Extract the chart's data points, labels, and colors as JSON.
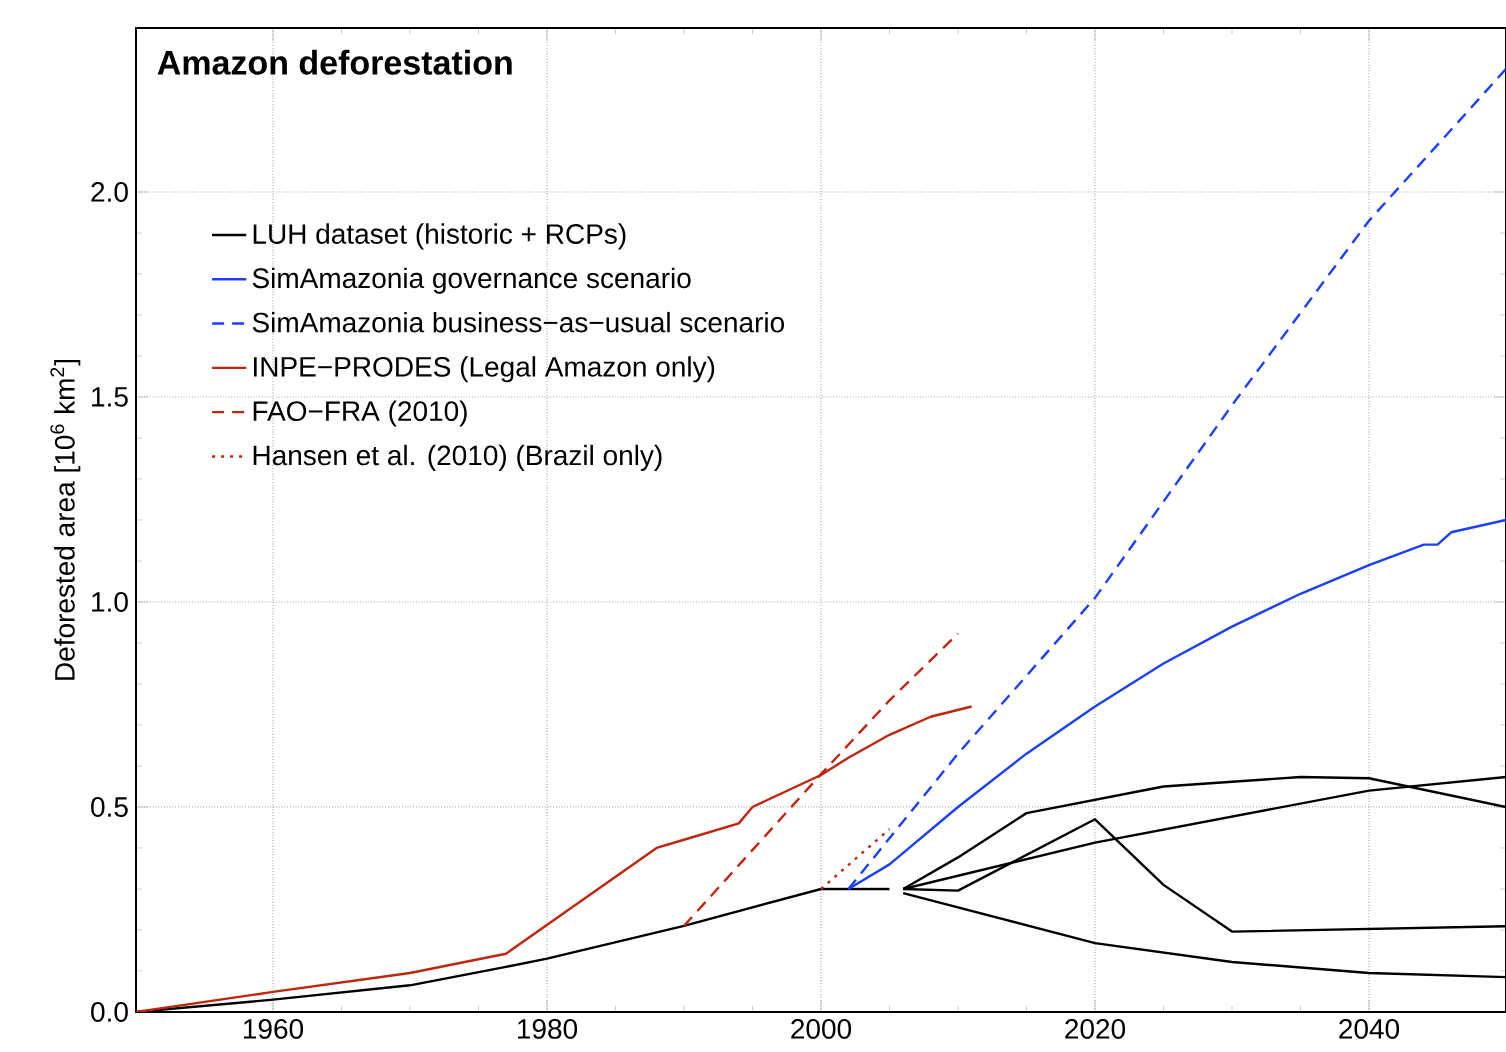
{
  "chart_data": {
    "type": "line",
    "title": "Amazon deforestation",
    "ylabel": "Deforested area  [10$^{6}$ km$^{2}$]",
    "xlim": [
      1950,
      2050
    ],
    "ylim": [
      0,
      2.4
    ],
    "xticks": [
      1960,
      1980,
      2000,
      2020,
      2040
    ],
    "yticks": [
      {
        "value": 0,
        "label": "0.0"
      },
      {
        "value": 0.5,
        "label": "0.5"
      },
      {
        "value": 1,
        "label": "1.0"
      },
      {
        "value": 1.5,
        "label": "1.5"
      },
      {
        "value": 2,
        "label": "2.0"
      }
    ],
    "grid": true,
    "legend": "top left",
    "marker": "none",
    "series": [
      {
        "name": "LUH dataset (historic + RCPs)",
        "color": "#000000",
        "line_style": "solid",
        "x": [
          1950,
          1960,
          1970,
          1977,
          1980,
          1990,
          2000,
          2005
        ],
        "values": [
          0,
          0.03,
          0.065,
          0.11,
          0.13,
          0.21,
          0.3,
          0.3
        ]
      },
      {
        "name": "SimAmazonia governance scenario",
        "color": "#1a40ff",
        "line_style": "solid",
        "x": [
          2002,
          2005,
          2010,
          2015,
          2020,
          2025,
          2030,
          2035,
          2040,
          2044,
          2045,
          2046,
          2050
        ],
        "values": [
          0.3,
          0.36,
          0.5,
          0.63,
          0.745,
          0.85,
          0.94,
          1.02,
          1.09,
          1.14,
          1.14,
          1.17,
          1.2
        ]
      },
      {
        "name": "SimAmazonia business−as−usual scenario",
        "color": "#1a40ff",
        "line_style": "dashed",
        "x": [
          2002,
          2010,
          2020,
          2030,
          2040,
          2050
        ],
        "values": [
          0.3,
          0.63,
          1.01,
          1.48,
          1.93,
          2.3
        ]
      },
      {
        "name": "INPE−PRODES (Legal Amazon only)",
        "color": "#c0250d",
        "line_style": "solid",
        "x": [
          1950,
          1960,
          1970,
          1977,
          1988,
          1990,
          1994,
          1995,
          2000,
          2002,
          2005,
          2008,
          2011
        ],
        "values": [
          0,
          0.049,
          0.095,
          0.142,
          0.4,
          0.42,
          0.46,
          0.5,
          0.578,
          0.62,
          0.676,
          0.72,
          0.745
        ]
      },
      {
        "name": "FAO−FRA (2010)",
        "color": "#c0250d",
        "line_style": "dashed",
        "x": [
          1990,
          2000,
          2005,
          2010
        ],
        "values": [
          0.21,
          0.58,
          0.76,
          0.923
        ]
      },
      {
        "name": "Hansen et al. (2010) (Brazil only)",
        "color": "#c0250d",
        "line_style": "dotted",
        "x": [
          2000,
          2005
        ],
        "values": [
          0.3,
          0.446
        ]
      },
      {
        "color": "#000000",
        "line_style": "solid",
        "x": [
          2006,
          2010,
          2015,
          2025,
          2035,
          2040,
          2050
        ],
        "values": [
          0.3,
          0.377,
          0.485,
          0.55,
          0.573,
          0.57,
          0.5
        ]
      },
      {
        "color": "#000000",
        "line_style": "solid",
        "x": [
          2006,
          2020,
          2040,
          2050
        ],
        "values": [
          0.3,
          0.413,
          0.54,
          0.573
        ]
      },
      {
        "color": "#000000",
        "line_style": "solid",
        "x": [
          2006,
          2010,
          2020,
          2025,
          2030,
          2050
        ],
        "values": [
          0.3,
          0.296,
          0.47,
          0.31,
          0.196,
          0.209
        ]
      },
      {
        "color": "#000000",
        "line_style": "solid",
        "x": [
          2006,
          2020,
          2030,
          2040,
          2050
        ],
        "values": [
          0.29,
          0.168,
          0.122,
          0.095,
          0.085
        ]
      }
    ]
  }
}
